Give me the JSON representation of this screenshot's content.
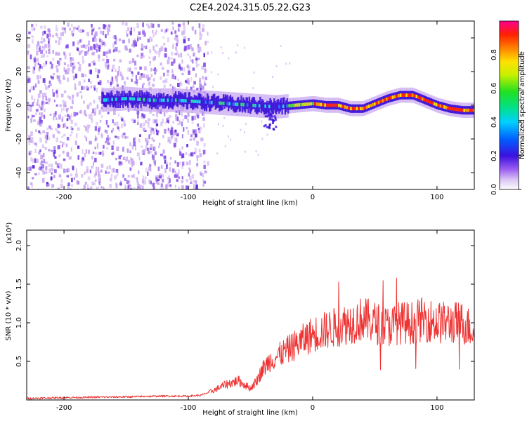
{
  "title": "C2E4.2024.315.05.22.G23",
  "colors": {
    "snr_line": "#ee3333",
    "spectrogram_low": "#c9a8ee",
    "spectrogram_core": "#5a1ed6"
  },
  "chart_data": [
    {
      "type": "heatmap",
      "xlabel": "Height of straight line (km)",
      "ylabel": "Frequency (Hz)",
      "xlim": [
        -230,
        130
      ],
      "ylim": [
        -50,
        50
      ],
      "x_ticks": [
        "-200",
        "-100",
        "0",
        "100"
      ],
      "x_tick_values": [
        -200,
        -100,
        0,
        100
      ],
      "y_ticks": [
        "-40",
        "-20",
        "0",
        "20",
        "40"
      ],
      "y_tick_values": [
        -40,
        -20,
        0,
        20,
        40
      ],
      "colorbar": {
        "label": "Normalized spectral amplitude",
        "range": [
          0,
          1
        ],
        "ticks": [
          "0.0",
          "0.2",
          "0.4",
          "0.6",
          "0.8"
        ],
        "tick_values": [
          0.0,
          0.2,
          0.4,
          0.6,
          0.8
        ]
      },
      "noise_region_x": [
        -230,
        -85
      ],
      "signal_trace": {
        "x": [
          -170,
          -150,
          -130,
          -110,
          -90,
          -70,
          -50,
          -30,
          -15,
          0,
          10,
          20,
          30,
          40,
          50,
          60,
          70,
          80,
          90,
          100,
          110,
          120,
          130
        ],
        "frequency": [
          3,
          4,
          3,
          3,
          2,
          1,
          0,
          -1,
          0,
          1,
          0,
          0,
          -2,
          -2,
          1,
          4,
          6,
          6,
          3,
          0,
          -2,
          -3,
          -3
        ]
      }
    },
    {
      "type": "line",
      "xlabel": "Height of straight line (km)",
      "ylabel": "SNR (10 * v/v)",
      "y_multiplier": "(x10⁴)",
      "xlim": [
        -230,
        130
      ],
      "ylim": [
        0,
        2.2
      ],
      "x_ticks": [
        "-200",
        "-100",
        "0",
        "100"
      ],
      "x_tick_values": [
        -200,
        -100,
        0,
        100
      ],
      "y_ticks": [
        "0.5",
        "1.0",
        "1.5",
        "2.0"
      ],
      "y_tick_values": [
        0.5,
        1.0,
        1.5,
        2.0
      ],
      "series": [
        {
          "x": [
            -230,
            -200,
            -150,
            -120,
            -100,
            -90,
            -80,
            -70,
            -60,
            -55,
            -50,
            -45,
            -40,
            -35,
            -30,
            -25,
            -20,
            -10,
            0,
            10,
            20,
            30,
            40,
            50,
            60,
            70,
            80,
            90,
            100,
            110,
            120,
            130
          ],
          "values": [
            0.02,
            0.03,
            0.04,
            0.05,
            0.05,
            0.06,
            0.12,
            0.2,
            0.25,
            0.2,
            0.15,
            0.25,
            0.4,
            0.5,
            0.55,
            0.6,
            0.65,
            0.75,
            0.85,
            0.9,
            0.95,
            1.0,
            1.05,
            1.0,
            0.95,
            1.0,
            1.0,
            1.05,
            1.0,
            1.0,
            1.0,
            0.9
          ]
        }
      ]
    }
  ]
}
